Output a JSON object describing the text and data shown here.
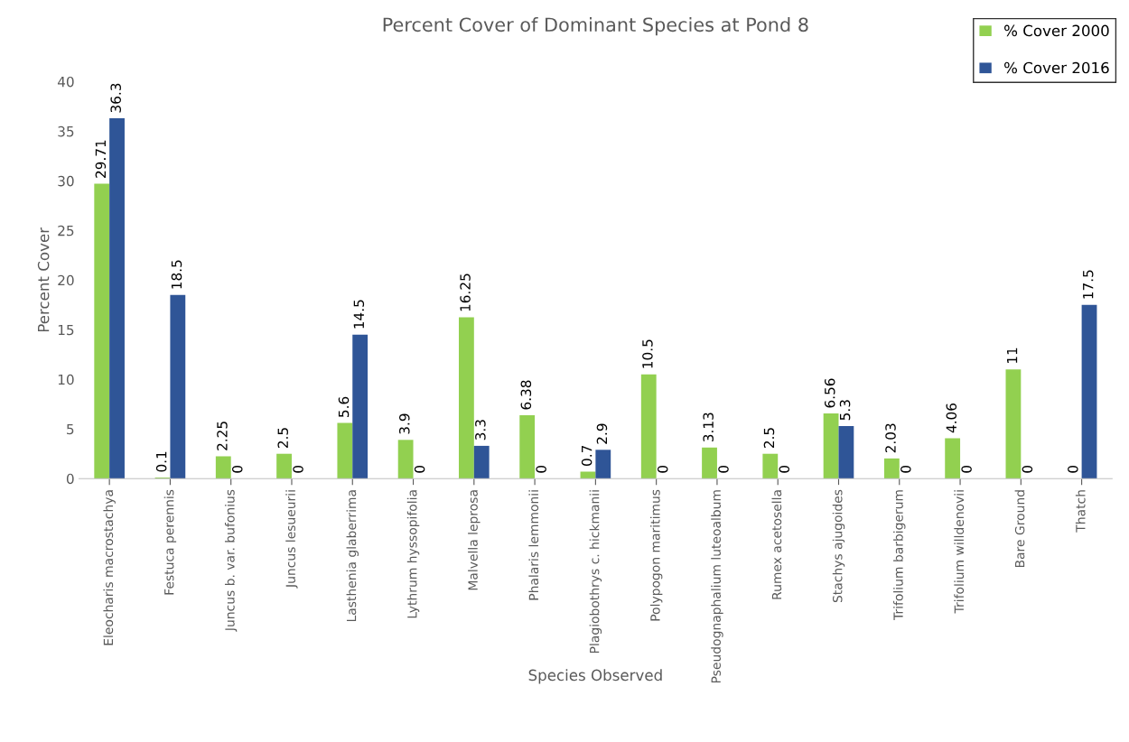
{
  "chart_data": {
    "type": "bar",
    "title": "Percent Cover of Dominant Species at Pond 8",
    "xlabel": "Species Observed",
    "ylabel": "Percent Cover",
    "categories": [
      "Eleocharis macrostachya",
      "Festuca perennis",
      "Juncus b. var. bufonius",
      "Juncus lesueurii",
      "Lasthenia glaberrima",
      "Lythrum hyssopifolia",
      "Malvella leprosa",
      "Phalaris lemmonii",
      "Plagiobothrys c. hickmanii",
      "Polypogon maritimus",
      "Pseudognaphalium luteoalbum",
      "Rumex acetosella",
      "Stachys ajugoides",
      "Trifolium barbigerum",
      "Trifolium willdenovii",
      "Bare Ground",
      "Thatch"
    ],
    "series": [
      {
        "name": "% Cover 2000",
        "color": "#92d050",
        "values": [
          29.71,
          0.1,
          2.25,
          2.5,
          5.6,
          3.9,
          16.25,
          6.38,
          0.7,
          10.5,
          3.13,
          2.5,
          6.56,
          2.03,
          4.06,
          11,
          0
        ]
      },
      {
        "name": "% Cover 2016",
        "color": "#2f5597",
        "values": [
          36.3,
          18.5,
          0,
          0,
          14.5,
          0,
          3.3,
          0,
          2.9,
          0,
          0,
          0,
          5.3,
          0,
          0,
          0,
          17.5
        ]
      }
    ],
    "ylim": [
      0,
      40
    ],
    "yticks": [
      0,
      5,
      10,
      15,
      20,
      25,
      30,
      35,
      40
    ],
    "data_labels": true,
    "legend": "top right",
    "grid": false
  }
}
